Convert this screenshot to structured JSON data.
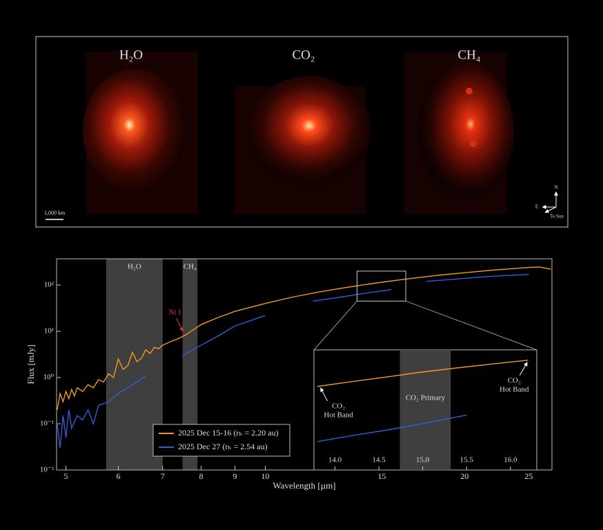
{
  "image_panel": {
    "maps": [
      "H₂O",
      "CO₂",
      "CH₄"
    ],
    "scale_bar": "1,000 km",
    "compass": {
      "north": "N",
      "east": "E",
      "sun": "To Sun"
    }
  },
  "chart_data": {
    "type": "line",
    "xlabel": "Wavelength [µm]",
    "ylabel": "Flux [mJy]",
    "xscale": "log",
    "yscale": "log",
    "xlim": [
      4.84,
      27.1
    ],
    "ylim": [
      0.01,
      370
    ],
    "xticks": [
      5,
      6,
      7,
      8,
      9,
      10,
      15,
      20,
      25
    ],
    "yticks": [
      {
        "value": 0.01,
        "label": "10⁻²"
      },
      {
        "value": 0.1,
        "label": "10⁻¹"
      },
      {
        "value": 1,
        "label": "10⁰"
      },
      {
        "value": 10,
        "label": "10¹"
      },
      {
        "value": 100,
        "label": "10²"
      }
    ],
    "legend": "lower-center",
    "shaded_regions": [
      {
        "label": "H₂O",
        "range": [
          5.75,
          7.0
        ]
      },
      {
        "label": "CH₄",
        "range": [
          7.5,
          7.9
        ]
      }
    ],
    "annotations": [
      {
        "text": "Ni I",
        "x": 7.55,
        "y": 9,
        "color": "#e0303a"
      }
    ],
    "series": [
      {
        "name": "2025 Dec 15-16 (rₕ = 2.20 au)",
        "color": "#f39a1e",
        "x": [
          4.85,
          4.9,
          4.95,
          5.0,
          5.05,
          5.1,
          5.15,
          5.2,
          5.3,
          5.4,
          5.5,
          5.6,
          5.7,
          5.8,
          5.9,
          6.0,
          6.1,
          6.2,
          6.3,
          6.4,
          6.5,
          6.6,
          6.7,
          6.8,
          6.9,
          7.0,
          7.2,
          7.4,
          7.6,
          7.8,
          8.0,
          8.5,
          9,
          10,
          11,
          12,
          13,
          14,
          15,
          16,
          17,
          18,
          20,
          22,
          24,
          25,
          26,
          27
        ],
        "values": [
          0.2,
          0.45,
          0.3,
          0.5,
          0.35,
          0.55,
          0.4,
          0.6,
          0.5,
          0.7,
          0.6,
          0.9,
          0.8,
          1.2,
          1.0,
          2.5,
          1.5,
          1.8,
          3.5,
          2.2,
          2.6,
          4,
          3.3,
          4.5,
          4.2,
          5,
          6,
          7,
          8.5,
          11,
          14,
          20,
          27,
          40,
          55,
          70,
          85,
          100,
          115,
          130,
          145,
          160,
          185,
          210,
          230,
          240,
          245,
          220
        ]
      },
      {
        "name": "2025 Dec 27 (rₕ = 2.54 au)",
        "color": "#2f5fd8",
        "x": [
          4.85,
          4.9,
          4.95,
          5.0,
          5.05,
          5.1,
          5.2,
          5.3,
          5.4,
          5.5,
          5.6,
          5.8,
          6.0,
          6.2,
          6.4,
          6.6,
          7.0,
          7.5,
          8,
          8.5,
          9,
          10,
          11,
          11.8,
          13,
          14,
          15.5,
          16.5,
          17.5,
          20,
          22,
          25
        ],
        "values": [
          0.1,
          0.03,
          0.15,
          0.05,
          0.2,
          0.08,
          0.15,
          0.12,
          0.2,
          0.1,
          0.25,
          0.3,
          0.45,
          0.6,
          0.8,
          1.1,
          null,
          3,
          5,
          8,
          13,
          22,
          null,
          45,
          55,
          65,
          80,
          null,
          120,
          140,
          155,
          170
        ]
      }
    ],
    "inset": {
      "xscale": "linear",
      "yscale": "log",
      "xlim": [
        13.76,
        16.3
      ],
      "ylim": [
        45,
        200
      ],
      "xticks": [
        {
          "value": 14,
          "label": "14.0"
        },
        14.5,
        {
          "value": 15,
          "label": "15.0"
        },
        15.5,
        {
          "value": 16,
          "label": "16.0"
        }
      ],
      "shaded_regions": [
        {
          "label": "CO₂ Primary",
          "range": [
            14.74,
            15.32
          ]
        }
      ],
      "annotations": [
        {
          "lines": [
            "CO₂",
            "Hot Band"
          ],
          "x": 13.82,
          "y": 128
        },
        {
          "lines": [
            "CO₂",
            "Hot Band"
          ],
          "x": 16.2,
          "y": 176
        }
      ],
      "series": [
        {
          "x": [
            13.8,
            14.2,
            14.6,
            15.0,
            15.4,
            15.8,
            16.2
          ],
          "values": [
            127,
            135,
            143,
            152,
            160,
            168,
            176
          ]
        },
        {
          "x": [
            13.8,
            14.2,
            14.6,
            15.0,
            15.5
          ],
          "values": [
            64,
            69,
            74,
            80,
            89
          ]
        }
      ]
    }
  }
}
